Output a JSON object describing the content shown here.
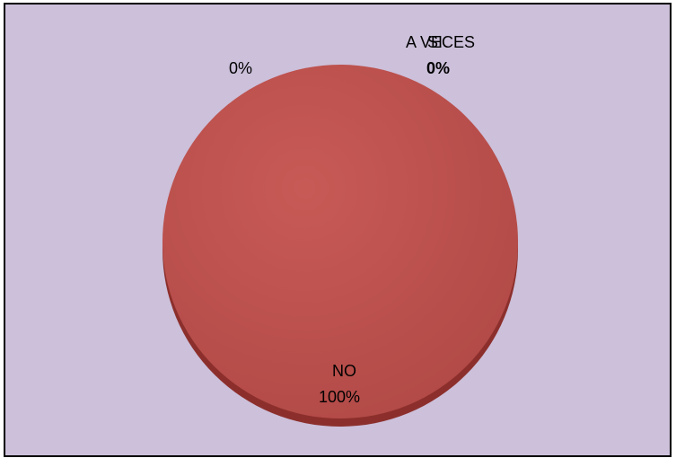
{
  "chart_data": {
    "type": "pie",
    "categories": [
      "SI",
      "A VECES",
      "NO"
    ],
    "values": [
      0,
      0,
      100
    ],
    "data_labels": [
      {
        "category": "SI",
        "percent": "0%"
      },
      {
        "category": "A VECES",
        "percent": "0%"
      },
      {
        "category": "NO",
        "percent": "100%"
      }
    ],
    "title": "",
    "legend": "none",
    "style": "3d-pie"
  },
  "colors": {
    "background": "#CCC0DA",
    "frame_border": "#000000",
    "slice_no": "#C0504D",
    "slice_no_dark": "#8C2F2C",
    "label_text": "#000000"
  }
}
